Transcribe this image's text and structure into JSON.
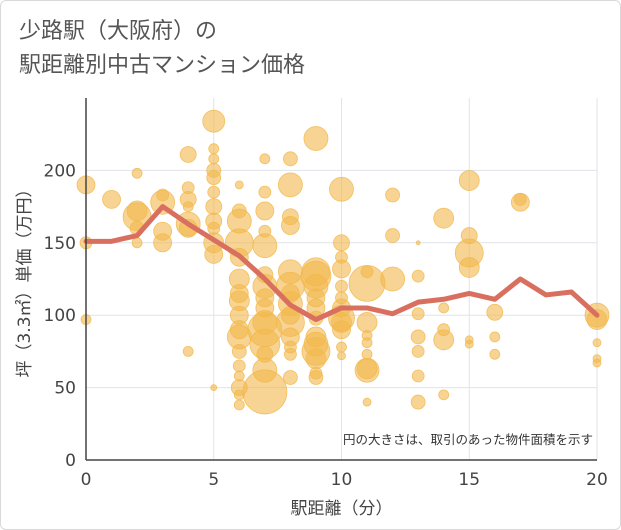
{
  "title_line1": "少路駅（大阪府）の",
  "title_line2": "駅距離別中古マンション価格",
  "colors": {
    "bubble": "#f2b84b",
    "line": "#d9705f",
    "grid": "#dfe3ea",
    "axis": "#444444"
  },
  "chart_data": {
    "type": "scatter",
    "title": "少路駅（大阪府）の駅距離別中古マンション価格",
    "xlabel": "駅距離（分）",
    "ylabel": "坪（3.3㎡）単価（万円）",
    "xlim": [
      0,
      20
    ],
    "ylim": [
      0,
      250
    ],
    "xticks": [
      0,
      5,
      10,
      15,
      20
    ],
    "yticks": [
      0,
      50,
      100,
      150,
      200
    ],
    "grid": true,
    "note": "円の大きさは、取引のあった物件面積を示す",
    "average_line": {
      "x": [
        0,
        1,
        2,
        3,
        4,
        5,
        6,
        7,
        8,
        9,
        10,
        11,
        12,
        13,
        14,
        15,
        16,
        17,
        18,
        19,
        20
      ],
      "y": [
        151,
        151,
        155,
        175,
        163,
        152,
        141,
        125,
        107,
        97,
        105,
        105,
        101,
        109,
        111,
        115,
        111,
        125,
        114,
        116,
        100
      ]
    },
    "points": [
      {
        "x": 0,
        "y": 190,
        "s": 9
      },
      {
        "x": 0,
        "y": 150,
        "s": 6
      },
      {
        "x": 0,
        "y": 97,
        "s": 5
      },
      {
        "x": 1,
        "y": 180,
        "s": 9
      },
      {
        "x": 2,
        "y": 198,
        "s": 5
      },
      {
        "x": 2,
        "y": 172,
        "s": 10
      },
      {
        "x": 2,
        "y": 168,
        "s": 14
      },
      {
        "x": 2,
        "y": 160,
        "s": 7
      },
      {
        "x": 2,
        "y": 150,
        "s": 5
      },
      {
        "x": 3,
        "y": 183,
        "s": 6
      },
      {
        "x": 3,
        "y": 178,
        "s": 12
      },
      {
        "x": 3,
        "y": 158,
        "s": 9
      },
      {
        "x": 3,
        "y": 150,
        "s": 9
      },
      {
        "x": 4,
        "y": 211,
        "s": 8
      },
      {
        "x": 4,
        "y": 188,
        "s": 6
      },
      {
        "x": 4,
        "y": 180,
        "s": 8
      },
      {
        "x": 4,
        "y": 175,
        "s": 5
      },
      {
        "x": 4,
        "y": 163,
        "s": 12
      },
      {
        "x": 4,
        "y": 160,
        "s": 9
      },
      {
        "x": 4,
        "y": 75,
        "s": 5
      },
      {
        "x": 5,
        "y": 234,
        "s": 11
      },
      {
        "x": 5,
        "y": 215,
        "s": 5
      },
      {
        "x": 5,
        "y": 208,
        "s": 5
      },
      {
        "x": 5,
        "y": 200,
        "s": 7
      },
      {
        "x": 5,
        "y": 195,
        "s": 7
      },
      {
        "x": 5,
        "y": 185,
        "s": 6
      },
      {
        "x": 5,
        "y": 175,
        "s": 8
      },
      {
        "x": 5,
        "y": 165,
        "s": 8
      },
      {
        "x": 5,
        "y": 160,
        "s": 6
      },
      {
        "x": 5,
        "y": 150,
        "s": 10
      },
      {
        "x": 5,
        "y": 142,
        "s": 9
      },
      {
        "x": 5,
        "y": 50,
        "s": 3
      },
      {
        "x": 6,
        "y": 190,
        "s": 4
      },
      {
        "x": 6,
        "y": 172,
        "s": 7
      },
      {
        "x": 6,
        "y": 165,
        "s": 12
      },
      {
        "x": 6,
        "y": 150,
        "s": 14
      },
      {
        "x": 6,
        "y": 140,
        "s": 9
      },
      {
        "x": 6,
        "y": 125,
        "s": 10
      },
      {
        "x": 6,
        "y": 115,
        "s": 9
      },
      {
        "x": 6,
        "y": 110,
        "s": 10
      },
      {
        "x": 6,
        "y": 100,
        "s": 9
      },
      {
        "x": 6,
        "y": 90,
        "s": 9
      },
      {
        "x": 6,
        "y": 85,
        "s": 12
      },
      {
        "x": 6,
        "y": 75,
        "s": 7
      },
      {
        "x": 6,
        "y": 65,
        "s": 6
      },
      {
        "x": 6,
        "y": 58,
        "s": 5
      },
      {
        "x": 6,
        "y": 50,
        "s": 8
      },
      {
        "x": 6,
        "y": 45,
        "s": 5
      },
      {
        "x": 6,
        "y": 38,
        "s": 5
      },
      {
        "x": 7,
        "y": 208,
        "s": 5
      },
      {
        "x": 7,
        "y": 185,
        "s": 6
      },
      {
        "x": 7,
        "y": 172,
        "s": 9
      },
      {
        "x": 7,
        "y": 158,
        "s": 6
      },
      {
        "x": 7,
        "y": 148,
        "s": 12
      },
      {
        "x": 7,
        "y": 128,
        "s": 8
      },
      {
        "x": 7,
        "y": 120,
        "s": 12
      },
      {
        "x": 7,
        "y": 112,
        "s": 9
      },
      {
        "x": 7,
        "y": 105,
        "s": 9
      },
      {
        "x": 7,
        "y": 95,
        "s": 12
      },
      {
        "x": 7,
        "y": 90,
        "s": 17
      },
      {
        "x": 7,
        "y": 80,
        "s": 15
      },
      {
        "x": 7,
        "y": 73,
        "s": 8
      },
      {
        "x": 7,
        "y": 62,
        "s": 12
      },
      {
        "x": 7,
        "y": 47,
        "s": 22
      },
      {
        "x": 8,
        "y": 208,
        "s": 7
      },
      {
        "x": 8,
        "y": 190,
        "s": 12
      },
      {
        "x": 8,
        "y": 168,
        "s": 8
      },
      {
        "x": 8,
        "y": 162,
        "s": 9
      },
      {
        "x": 8,
        "y": 130,
        "s": 12
      },
      {
        "x": 8,
        "y": 120,
        "s": 14
      },
      {
        "x": 8,
        "y": 115,
        "s": 9
      },
      {
        "x": 8,
        "y": 108,
        "s": 12
      },
      {
        "x": 8,
        "y": 100,
        "s": 9
      },
      {
        "x": 8,
        "y": 95,
        "s": 14
      },
      {
        "x": 8,
        "y": 85,
        "s": 9
      },
      {
        "x": 8,
        "y": 78,
        "s": 6
      },
      {
        "x": 8,
        "y": 73,
        "s": 6
      },
      {
        "x": 8,
        "y": 57,
        "s": 7
      },
      {
        "x": 9,
        "y": 222,
        "s": 12
      },
      {
        "x": 9,
        "y": 130,
        "s": 14
      },
      {
        "x": 9,
        "y": 127,
        "s": 15
      },
      {
        "x": 9,
        "y": 120,
        "s": 12
      },
      {
        "x": 9,
        "y": 112,
        "s": 9
      },
      {
        "x": 9,
        "y": 105,
        "s": 9
      },
      {
        "x": 9,
        "y": 98,
        "s": 7
      },
      {
        "x": 9,
        "y": 85,
        "s": 10
      },
      {
        "x": 9,
        "y": 80,
        "s": 12
      },
      {
        "x": 9,
        "y": 75,
        "s": 14
      },
      {
        "x": 9,
        "y": 70,
        "s": 10
      },
      {
        "x": 9,
        "y": 60,
        "s": 6
      },
      {
        "x": 9,
        "y": 57,
        "s": 7
      },
      {
        "x": 10,
        "y": 187,
        "s": 12
      },
      {
        "x": 10,
        "y": 150,
        "s": 8
      },
      {
        "x": 10,
        "y": 140,
        "s": 6
      },
      {
        "x": 10,
        "y": 132,
        "s": 9
      },
      {
        "x": 10,
        "y": 120,
        "s": 6
      },
      {
        "x": 10,
        "y": 112,
        "s": 6
      },
      {
        "x": 10,
        "y": 105,
        "s": 9
      },
      {
        "x": 10,
        "y": 98,
        "s": 13
      },
      {
        "x": 10,
        "y": 95,
        "s": 10
      },
      {
        "x": 10,
        "y": 90,
        "s": 9
      },
      {
        "x": 10,
        "y": 78,
        "s": 5
      },
      {
        "x": 10,
        "y": 72,
        "s": 4
      },
      {
        "x": 11,
        "y": 130,
        "s": 6
      },
      {
        "x": 11,
        "y": 122,
        "s": 18
      },
      {
        "x": 11,
        "y": 95,
        "s": 10
      },
      {
        "x": 11,
        "y": 86,
        "s": 5
      },
      {
        "x": 11,
        "y": 81,
        "s": 5
      },
      {
        "x": 11,
        "y": 73,
        "s": 5
      },
      {
        "x": 11,
        "y": 63,
        "s": 10
      },
      {
        "x": 11,
        "y": 62,
        "s": 12
      },
      {
        "x": 11,
        "y": 40,
        "s": 4
      },
      {
        "x": 12,
        "y": 183,
        "s": 7
      },
      {
        "x": 12,
        "y": 155,
        "s": 7
      },
      {
        "x": 12,
        "y": 125,
        "s": 12
      },
      {
        "x": 13,
        "y": 150,
        "s": 2
      },
      {
        "x": 13,
        "y": 127,
        "s": 6
      },
      {
        "x": 13,
        "y": 101,
        "s": 6
      },
      {
        "x": 13,
        "y": 85,
        "s": 7
      },
      {
        "x": 13,
        "y": 75,
        "s": 6
      },
      {
        "x": 13,
        "y": 58,
        "s": 6
      },
      {
        "x": 13,
        "y": 40,
        "s": 7
      },
      {
        "x": 14,
        "y": 167,
        "s": 10
      },
      {
        "x": 14,
        "y": 105,
        "s": 5
      },
      {
        "x": 14,
        "y": 90,
        "s": 6
      },
      {
        "x": 14,
        "y": 83,
        "s": 10
      },
      {
        "x": 14,
        "y": 45,
        "s": 5
      },
      {
        "x": 15,
        "y": 193,
        "s": 10
      },
      {
        "x": 15,
        "y": 155,
        "s": 8
      },
      {
        "x": 15,
        "y": 143,
        "s": 14
      },
      {
        "x": 15,
        "y": 133,
        "s": 10
      },
      {
        "x": 15,
        "y": 83,
        "s": 4
      },
      {
        "x": 15,
        "y": 80,
        "s": 4
      },
      {
        "x": 16,
        "y": 102,
        "s": 8
      },
      {
        "x": 16,
        "y": 85,
        "s": 5
      },
      {
        "x": 16,
        "y": 73,
        "s": 5
      },
      {
        "x": 17,
        "y": 180,
        "s": 6
      },
      {
        "x": 17,
        "y": 178,
        "s": 9
      },
      {
        "x": 20,
        "y": 100,
        "s": 12
      },
      {
        "x": 20,
        "y": 97,
        "s": 10
      },
      {
        "x": 20,
        "y": 81,
        "s": 4
      },
      {
        "x": 20,
        "y": 70,
        "s": 4
      },
      {
        "x": 20,
        "y": 67,
        "s": 4
      }
    ]
  }
}
